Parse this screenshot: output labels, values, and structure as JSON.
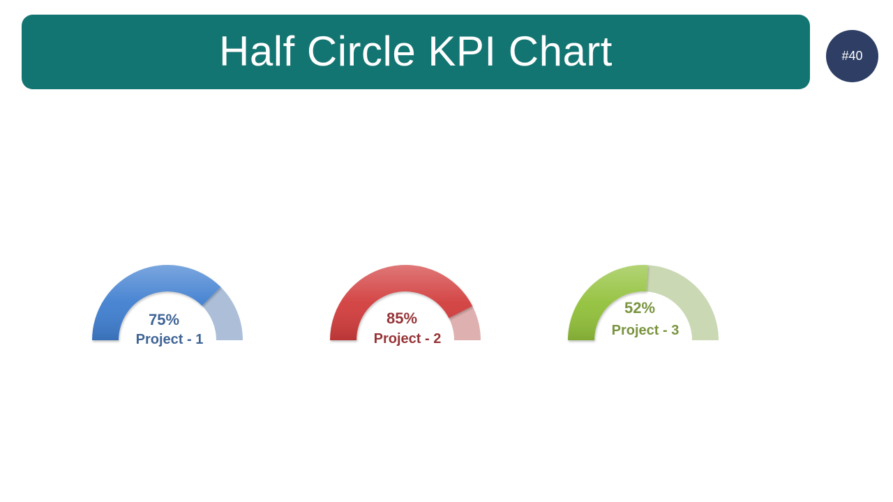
{
  "title": "Half Circle KPI Chart",
  "badge": "#40",
  "chart_data": {
    "type": "gauge",
    "max": 100,
    "series": [
      {
        "name": "Project - 1",
        "value": 75,
        "value_label": "75%",
        "fill_color": "#3f7fd0",
        "track_color": "#adbfd8",
        "text_color": "#3f6496"
      },
      {
        "name": "Project - 2",
        "value": 85,
        "value_label": "85%",
        "fill_color": "#d23c3c",
        "track_color": "#dfb0b0",
        "text_color": "#963438"
      },
      {
        "name": "Project - 3",
        "value": 52,
        "value_label": "52%",
        "fill_color": "#92c13a",
        "track_color": "#cad8b4",
        "text_color": "#7a9440"
      }
    ]
  }
}
